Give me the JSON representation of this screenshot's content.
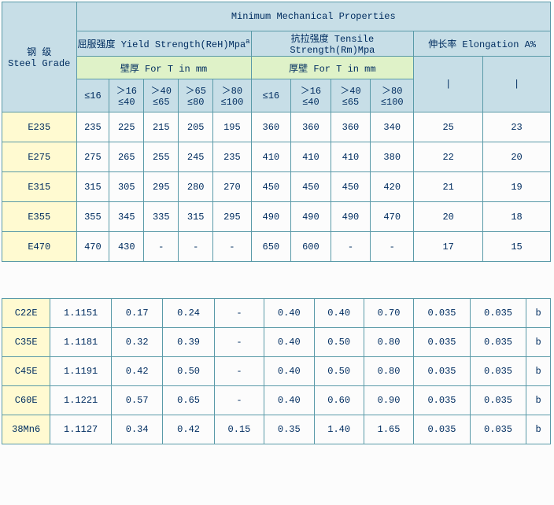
{
  "table1": {
    "title": "Minimum Mechanical Properties",
    "rowHeader": "钢  级\nSteel Grade",
    "yieldHeader": "屈服强度 Yield Strength(ReH)Mpa",
    "yieldSup": "a",
    "tensileHeader": "抗拉强度 Tensile Strength(Rm)Mpa",
    "elongHeader": "伸长率 Elongation A%",
    "thickHeader1": "壁厚 For T in mm",
    "thickHeader2": "厚壁 For T in mm",
    "ranges1": [
      "≤16",
      "＞16\n≤40",
      "＞40\n≤65",
      "＞65\n≤80",
      "＞80\n≤100"
    ],
    "ranges2": [
      "≤16",
      "＞16\n≤40",
      "＞40\n≤65",
      "＞80\n≤100"
    ],
    "elongPlaceholder": "|",
    "rows": [
      {
        "g": "E235",
        "v": [
          "235",
          "225",
          "215",
          "205",
          "195",
          "360",
          "360",
          "360",
          "340",
          "25",
          "23"
        ]
      },
      {
        "g": "E275",
        "v": [
          "275",
          "265",
          "255",
          "245",
          "235",
          "410",
          "410",
          "410",
          "380",
          "22",
          "20"
        ]
      },
      {
        "g": "E315",
        "v": [
          "315",
          "305",
          "295",
          "280",
          "270",
          "450",
          "450",
          "450",
          "420",
          "21",
          "19"
        ]
      },
      {
        "g": "E355",
        "v": [
          "355",
          "345",
          "335",
          "315",
          "295",
          "490",
          "490",
          "490",
          "470",
          "20",
          "18"
        ]
      },
      {
        "g": "E470",
        "v": [
          "470",
          "430",
          "-",
          "-",
          "-",
          "650",
          "600",
          "-",
          "-",
          "17",
          "15"
        ]
      }
    ]
  },
  "table2": {
    "rows": [
      {
        "g": "C22E",
        "v": [
          "1.1151",
          "0.17",
          "0.24",
          "-",
          "0.40",
          "0.40",
          "0.70",
          "0.035",
          "0.035",
          "b"
        ]
      },
      {
        "g": "C35E",
        "v": [
          "1.1181",
          "0.32",
          "0.39",
          "-",
          "0.40",
          "0.50",
          "0.80",
          "0.035",
          "0.035",
          "b"
        ]
      },
      {
        "g": "C45E",
        "v": [
          "1.1191",
          "0.42",
          "0.50",
          "-",
          "0.40",
          "0.50",
          "0.80",
          "0.035",
          "0.035",
          "b"
        ]
      },
      {
        "g": "C60E",
        "v": [
          "1.1221",
          "0.57",
          "0.65",
          "-",
          "0.40",
          "0.60",
          "0.90",
          "0.035",
          "0.035",
          "b"
        ]
      },
      {
        "g": "38Mn6",
        "v": [
          "1.1127",
          "0.34",
          "0.42",
          "0.15",
          "0.35",
          "1.40",
          "1.65",
          "0.035",
          "0.035",
          "b"
        ]
      }
    ]
  },
  "colors": {
    "border": "#5a9aa8",
    "headerBlue": "#c7dee7",
    "headerGreen": "#dff2c8",
    "cellYellow": "#fffad1",
    "background": "#fcfcfc",
    "text": "#002d60"
  }
}
